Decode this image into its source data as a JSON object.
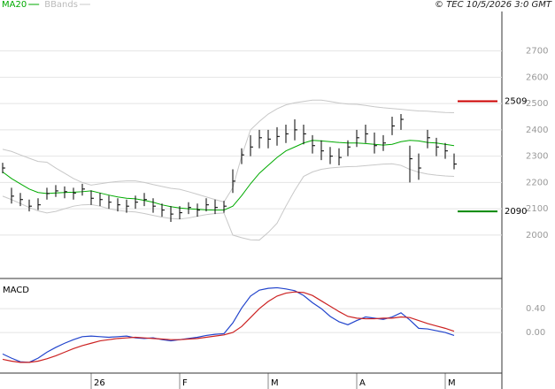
{
  "chart_data": [
    {
      "type": "ohlc",
      "legend": "top-left",
      "credit": "© TEC 10/5/2026 3:0 GMT",
      "categories": [
        null,
        null,
        null,
        null,
        null,
        null,
        null,
        null,
        null,
        null,
        "26",
        null,
        null,
        null,
        null,
        null,
        null,
        null,
        null,
        null,
        "F",
        null,
        null,
        null,
        null,
        null,
        null,
        null,
        null,
        null,
        "M",
        null,
        null,
        null,
        null,
        null,
        null,
        null,
        null,
        null,
        "A",
        null,
        null,
        null,
        null,
        null,
        null,
        null,
        null,
        null,
        "M",
        null
      ],
      "color": "#000000",
      "high": [
        2275,
        2180,
        2160,
        2135,
        2140,
        2180,
        2190,
        2185,
        2180,
        2195,
        2170,
        2160,
        2150,
        2140,
        2135,
        2150,
        2160,
        2140,
        2120,
        2110,
        2110,
        2125,
        2120,
        2140,
        2135,
        2130,
        2250,
        2330,
        2380,
        2400,
        2400,
        2410,
        2420,
        2440,
        2420,
        2380,
        2360,
        2335,
        2330,
        2360,
        2400,
        2420,
        2390,
        2380,
        2450,
        2460,
        2340,
        2310,
        2400,
        2370,
        2350,
        2310
      ],
      "low": [
        2235,
        2120,
        2110,
        2090,
        2095,
        2135,
        2145,
        2140,
        2135,
        2150,
        2115,
        2110,
        2100,
        2090,
        2085,
        2100,
        2110,
        2085,
        2070,
        2050,
        2060,
        2080,
        2070,
        2090,
        2080,
        2085,
        2160,
        2270,
        2300,
        2330,
        2330,
        2340,
        2350,
        2360,
        2345,
        2310,
        2285,
        2270,
        2265,
        2300,
        2335,
        2350,
        2310,
        2320,
        2380,
        2400,
        2200,
        2210,
        2330,
        2300,
        2290,
        2250
      ],
      "close": [
        2255,
        2148,
        2135,
        2110,
        2115,
        2158,
        2168,
        2165,
        2160,
        2175,
        2140,
        2135,
        2125,
        2115,
        2110,
        2125,
        2135,
        2110,
        2095,
        2080,
        2085,
        2105,
        2095,
        2115,
        2105,
        2110,
        2205,
        2305,
        2335,
        2370,
        2365,
        2375,
        2385,
        2400,
        2385,
        2340,
        2320,
        2300,
        2295,
        2335,
        2370,
        2385,
        2340,
        2350,
        2415,
        2440,
        2290,
        2255,
        2370,
        2335,
        2320,
        2270
      ],
      "series": [
        {
          "name": "MA20",
          "color": "#00aa00",
          "values": [
            2240,
            2215,
            2195,
            2175,
            2162,
            2158,
            2160,
            2162,
            2163,
            2165,
            2168,
            2160,
            2152,
            2145,
            2140,
            2138,
            2132,
            2125,
            2115,
            2108,
            2103,
            2100,
            2098,
            2096,
            2095,
            2095,
            2110,
            2150,
            2195,
            2235,
            2265,
            2295,
            2320,
            2335,
            2350,
            2360,
            2358,
            2355,
            2352,
            2350,
            2350,
            2348,
            2345,
            2342,
            2345,
            2355,
            2360,
            2358,
            2352,
            2350,
            2345,
            2340
          ]
        },
        {
          "name": "BBands",
          "color": "#c8c8c8",
          "upper": [
            2326,
            2318,
            2305,
            2292,
            2280,
            2277,
            2255,
            2235,
            2215,
            2200,
            2190,
            2195,
            2200,
            2204,
            2206,
            2206,
            2200,
            2192,
            2185,
            2178,
            2174,
            2165,
            2155,
            2145,
            2135,
            2126,
            2180,
            2300,
            2400,
            2432,
            2460,
            2480,
            2495,
            2503,
            2508,
            2513,
            2513,
            2508,
            2502,
            2498,
            2497,
            2493,
            2488,
            2484,
            2481,
            2478,
            2475,
            2472,
            2471,
            2468,
            2466,
            2465
          ],
          "lower": [
            2148,
            2135,
            2120,
            2105,
            2092,
            2084,
            2090,
            2100,
            2110,
            2115,
            2116,
            2110,
            2100,
            2094,
            2090,
            2088,
            2082,
            2075,
            2068,
            2063,
            2061,
            2065,
            2072,
            2078,
            2082,
            2084,
            2000,
            1990,
            1982,
            1981,
            2010,
            2045,
            2110,
            2170,
            2223,
            2240,
            2250,
            2255,
            2258,
            2260,
            2261,
            2264,
            2267,
            2270,
            2271,
            2265,
            2250,
            2239,
            2232,
            2228,
            2225,
            2223
          ]
        }
      ],
      "annotations": [
        {
          "value": 2509,
          "color": "#cc0000"
        },
        {
          "value": 2090,
          "color": "#008800"
        }
      ],
      "ylim": [
        1835,
        2850
      ],
      "yticks": [
        2000,
        2100,
        2200,
        2300,
        2400,
        2500,
        2600,
        2700
      ],
      "grid": true
    },
    {
      "type": "line",
      "title": "MACD",
      "series": [
        {
          "color": "#2244cc",
          "values": [
            -0.36,
            -0.43,
            -0.49,
            -0.5,
            -0.43,
            -0.33,
            -0.25,
            -0.18,
            -0.12,
            -0.07,
            -0.06,
            -0.07,
            -0.08,
            -0.07,
            -0.06,
            -0.09,
            -0.1,
            -0.09,
            -0.12,
            -0.14,
            -0.12,
            -0.1,
            -0.08,
            -0.05,
            -0.03,
            -0.02,
            0.16,
            0.41,
            0.61,
            0.71,
            0.74,
            0.75,
            0.73,
            0.7,
            0.62,
            0.5,
            0.4,
            0.27,
            0.18,
            0.13,
            0.2,
            0.26,
            0.24,
            0.22,
            0.26,
            0.33,
            0.21,
            0.07,
            0.06,
            0.03,
            0,
            -0.05
          ]
        },
        {
          "color": "#cc2222",
          "values": [
            -0.45,
            -0.48,
            -0.5,
            -0.5,
            -0.48,
            -0.44,
            -0.39,
            -0.33,
            -0.27,
            -0.22,
            -0.18,
            -0.14,
            -0.12,
            -0.1,
            -0.09,
            -0.08,
            -0.09,
            -0.1,
            -0.11,
            -0.12,
            -0.12,
            -0.11,
            -0.1,
            -0.08,
            -0.06,
            -0.04,
            0,
            0.1,
            0.25,
            0.4,
            0.52,
            0.61,
            0.66,
            0.68,
            0.67,
            0.62,
            0.53,
            0.44,
            0.35,
            0.27,
            0.24,
            0.23,
            0.23,
            0.24,
            0.24,
            0.26,
            0.25,
            0.2,
            0.15,
            0.11,
            0.07,
            0.02
          ]
        }
      ],
      "ylim": [
        -0.68,
        0.89
      ],
      "yticks": [
        {
          "value": 0,
          "label": "0.00"
        },
        {
          "value": 0.4,
          "label": "0.40"
        }
      ],
      "grid": true
    }
  ]
}
